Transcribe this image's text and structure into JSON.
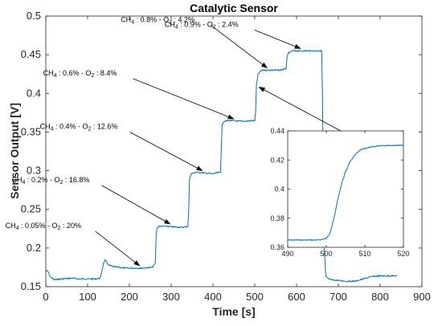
{
  "chart_data": [
    {
      "type": "line",
      "title": "Catalytic Sensor",
      "xlabel": "Time [s]",
      "ylabel": "Sensor Output [V]",
      "xlim": [
        0,
        900
      ],
      "ylim": [
        0.15,
        0.5
      ],
      "xticks": [
        0,
        100,
        200,
        300,
        400,
        500,
        600,
        700,
        800,
        900
      ],
      "yticks": [
        0.15,
        0.2,
        0.25,
        0.3,
        0.35,
        0.4,
        0.45,
        0.5
      ],
      "ytick_labels": [
        "0.15",
        "0.2",
        "0.25",
        "0.3",
        "0.35",
        "0.4",
        "0.45",
        "0.5"
      ],
      "grid": false,
      "series": [
        {
          "color": "#0072BD",
          "x": [
            0,
            5,
            10,
            20,
            40,
            60,
            80,
            100,
            120,
            130,
            135,
            138,
            142,
            146,
            150,
            160,
            175,
            190,
            210,
            230,
            255,
            262,
            264,
            266,
            270,
            290,
            310,
            330,
            340,
            342,
            344,
            348,
            360,
            380,
            400,
            418,
            420,
            422,
            426,
            440,
            460,
            480,
            500,
            502,
            504,
            508,
            515,
            520,
            540,
            560,
            575,
            577,
            580,
            590,
            610,
            630,
            650,
            660,
            662,
            664,
            666,
            670,
            680,
            700,
            720,
            740,
            760,
            780,
            800,
            820,
            840
          ],
          "y": [
            0.171,
            0.17,
            0.163,
            0.159,
            0.16,
            0.161,
            0.16,
            0.16,
            0.16,
            0.161,
            0.172,
            0.18,
            0.184,
            0.182,
            0.178,
            0.176,
            0.175,
            0.174,
            0.174,
            0.174,
            0.175,
            0.18,
            0.215,
            0.225,
            0.228,
            0.228,
            0.227,
            0.227,
            0.228,
            0.25,
            0.29,
            0.296,
            0.298,
            0.297,
            0.296,
            0.298,
            0.33,
            0.36,
            0.364,
            0.365,
            0.364,
            0.364,
            0.365,
            0.375,
            0.41,
            0.425,
            0.429,
            0.43,
            0.43,
            0.43,
            0.432,
            0.445,
            0.452,
            0.455,
            0.455,
            0.455,
            0.455,
            0.455,
            0.4,
            0.3,
            0.2,
            0.163,
            0.159,
            0.158,
            0.157,
            0.157,
            0.16,
            0.163,
            0.164,
            0.164,
            0.164
          ]
        }
      ],
      "annotations": [
        {
          "ch4": "0.05%",
          "o2": "20%",
          "x": 230,
          "y": 0.174
        },
        {
          "ch4": "0.2%",
          "o2": "16.8%",
          "x": 303,
          "y": 0.228
        },
        {
          "ch4": "0.4%",
          "o2": "12.6%",
          "x": 380,
          "y": 0.297
        },
        {
          "ch4": "0.6%",
          "o2": "8.4%",
          "x": 455,
          "y": 0.364
        },
        {
          "ch4": "0.8%",
          "o2": "4.2%",
          "x": 535,
          "y": 0.43
        },
        {
          "ch4": "0.9%",
          "o2": "2.4%",
          "x": 615,
          "y": 0.455
        }
      ]
    },
    {
      "type": "line",
      "title": "",
      "xlim": [
        490,
        520
      ],
      "ylim": [
        0.36,
        0.44
      ],
      "xticks": [
        490,
        500,
        510,
        520
      ],
      "yticks": [
        0.36,
        0.38,
        0.4,
        0.42,
        0.44
      ],
      "ytick_labels": [
        "0.36",
        "0.38",
        "0.4",
        "0.42",
        "0.44"
      ],
      "series": [
        {
          "color": "#0072BD",
          "x": [
            490,
            492,
            494,
            496,
            498,
            500,
            501,
            502,
            503,
            504,
            505,
            506,
            507,
            508,
            509,
            510,
            512,
            514,
            516,
            518,
            520
          ],
          "y": [
            0.365,
            0.365,
            0.365,
            0.365,
            0.365,
            0.366,
            0.37,
            0.38,
            0.393,
            0.404,
            0.412,
            0.418,
            0.422,
            0.425,
            0.427,
            0.428,
            0.429,
            0.43,
            0.43,
            0.43,
            0.43
          ]
        }
      ]
    }
  ]
}
